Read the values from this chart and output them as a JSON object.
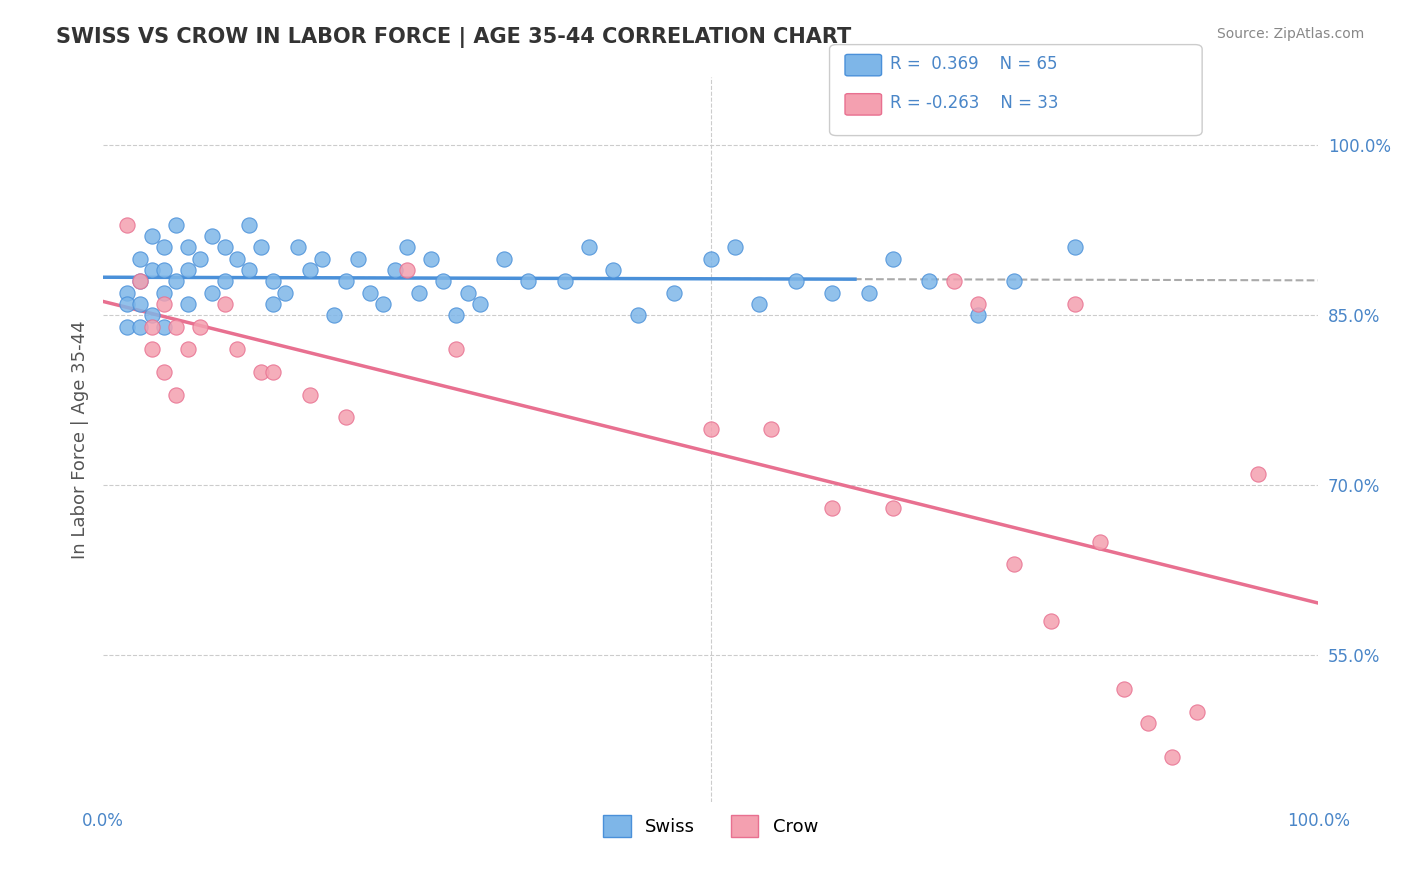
{
  "title": "SWISS VS CROW IN LABOR FORCE | AGE 35-44 CORRELATION CHART",
  "source": "Source: ZipAtlas.com",
  "ylabel": "In Labor Force | Age 35-44",
  "xlim": [
    0.0,
    1.0
  ],
  "ylim": [
    0.42,
    1.06
  ],
  "ytick_labels_right": [
    "100.0%",
    "85.0%",
    "70.0%",
    "55.0%"
  ],
  "ytick_vals_right": [
    1.0,
    0.85,
    0.7,
    0.55
  ],
  "r_swiss": 0.369,
  "n_swiss": 65,
  "r_crow": -0.263,
  "n_crow": 33,
  "trendline_swiss_color": "#4A90D9",
  "trendline_crow_color": "#E87090",
  "trendline_dashed_color": "#AAAAAA",
  "swiss_dot_color": "#7EB6E8",
  "crow_dot_color": "#F4A0B0",
  "background_color": "#FFFFFF",
  "grid_color": "#CCCCCC",
  "title_color": "#333333",
  "swiss_x": [
    0.02,
    0.02,
    0.02,
    0.03,
    0.03,
    0.03,
    0.03,
    0.04,
    0.04,
    0.04,
    0.05,
    0.05,
    0.05,
    0.05,
    0.06,
    0.06,
    0.07,
    0.07,
    0.07,
    0.08,
    0.09,
    0.09,
    0.1,
    0.1,
    0.11,
    0.12,
    0.12,
    0.13,
    0.14,
    0.14,
    0.15,
    0.16,
    0.17,
    0.18,
    0.19,
    0.2,
    0.21,
    0.22,
    0.23,
    0.24,
    0.25,
    0.26,
    0.27,
    0.28,
    0.29,
    0.3,
    0.31,
    0.33,
    0.35,
    0.38,
    0.4,
    0.42,
    0.44,
    0.47,
    0.5,
    0.52,
    0.54,
    0.57,
    0.6,
    0.63,
    0.65,
    0.68,
    0.72,
    0.75,
    0.8
  ],
  "swiss_y": [
    0.87,
    0.86,
    0.84,
    0.9,
    0.88,
    0.86,
    0.84,
    0.92,
    0.89,
    0.85,
    0.91,
    0.89,
    0.87,
    0.84,
    0.93,
    0.88,
    0.91,
    0.89,
    0.86,
    0.9,
    0.92,
    0.87,
    0.91,
    0.88,
    0.9,
    0.93,
    0.89,
    0.91,
    0.88,
    0.86,
    0.87,
    0.91,
    0.89,
    0.9,
    0.85,
    0.88,
    0.9,
    0.87,
    0.86,
    0.89,
    0.91,
    0.87,
    0.9,
    0.88,
    0.85,
    0.87,
    0.86,
    0.9,
    0.88,
    0.88,
    0.91,
    0.89,
    0.85,
    0.87,
    0.9,
    0.91,
    0.86,
    0.88,
    0.87,
    0.87,
    0.9,
    0.88,
    0.85,
    0.88,
    0.91
  ],
  "crow_x": [
    0.02,
    0.03,
    0.04,
    0.04,
    0.05,
    0.05,
    0.06,
    0.06,
    0.07,
    0.08,
    0.1,
    0.11,
    0.13,
    0.14,
    0.17,
    0.2,
    0.25,
    0.29,
    0.5,
    0.55,
    0.6,
    0.65,
    0.7,
    0.72,
    0.75,
    0.78,
    0.8,
    0.82,
    0.84,
    0.86,
    0.88,
    0.9,
    0.95
  ],
  "crow_y": [
    0.93,
    0.88,
    0.84,
    0.82,
    0.86,
    0.8,
    0.84,
    0.78,
    0.82,
    0.84,
    0.86,
    0.82,
    0.8,
    0.8,
    0.78,
    0.76,
    0.89,
    0.82,
    0.75,
    0.75,
    0.68,
    0.68,
    0.88,
    0.86,
    0.63,
    0.58,
    0.86,
    0.65,
    0.52,
    0.49,
    0.46,
    0.5,
    0.71
  ]
}
